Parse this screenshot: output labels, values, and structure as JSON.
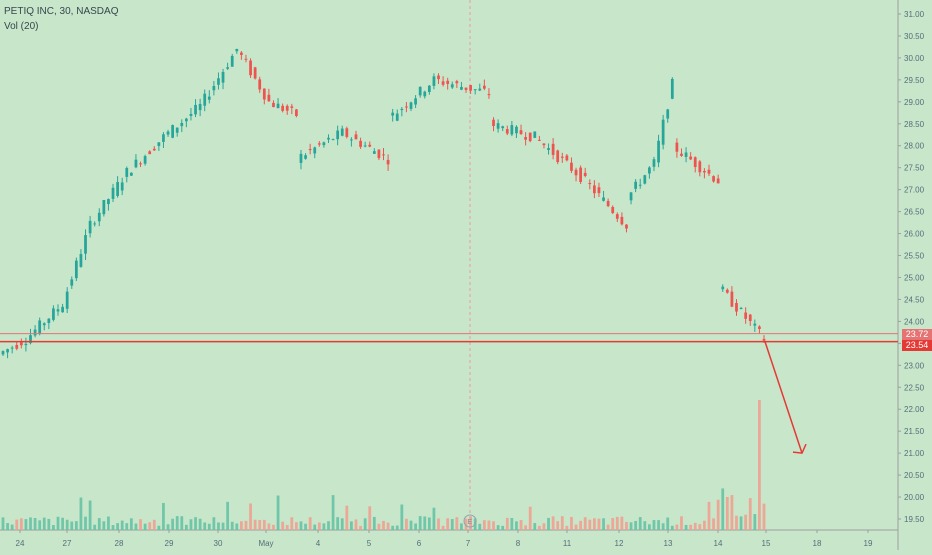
{
  "header": {
    "symbol_line": "PETIQ INC, 30, NASDAQ",
    "volume_label": "Vol (20)"
  },
  "colors": {
    "background": "#c8e6c9",
    "up": "#26a69a",
    "down": "#ef5350",
    "up_volume": "#66c2a5",
    "down_volume": "#f0a090",
    "line": "#e53935"
  },
  "chart_data": {
    "type": "candlestick",
    "interval": "30",
    "ylim": [
      19.2,
      31.2
    ],
    "y_ticks": [
      "31.00",
      "30.50",
      "30.00",
      "29.50",
      "29.00",
      "28.50",
      "28.00",
      "27.50",
      "27.00",
      "26.50",
      "26.00",
      "25.50",
      "25.00",
      "24.50",
      "24.00",
      "23.50",
      "23.00",
      "22.50",
      "22.00",
      "21.50",
      "21.00",
      "20.50",
      "20.00",
      "19.50"
    ],
    "x_ticks": [
      "24",
      "27",
      "28",
      "29",
      "30",
      "May",
      "4",
      "5",
      "6",
      "7",
      "8",
      "11",
      "12",
      "13",
      "14",
      "15",
      "18",
      "19"
    ],
    "horizontal_levels": [
      {
        "value": 23.72,
        "label": "23.72"
      },
      {
        "value": 23.54,
        "label": "23.54"
      }
    ],
    "annotation": {
      "type": "arrow",
      "from": {
        "date": "15",
        "price": 23.54
      },
      "to": {
        "date": "18",
        "price": 21.0
      }
    },
    "markers": [
      {
        "label": "E",
        "date": "7"
      }
    ],
    "series_segments": [
      {
        "start": 23.25,
        "end": 23.6,
        "bars": 6
      },
      {
        "start": 23.6,
        "end": 24.4,
        "bars": 8
      },
      {
        "start": 24.4,
        "end": 26.2,
        "bars": 6
      },
      {
        "start": 26.2,
        "end": 27.4,
        "bars": 8
      },
      {
        "start": 27.4,
        "end": 28.2,
        "bars": 8
      },
      {
        "start": 28.2,
        "end": 28.9,
        "bars": 8
      },
      {
        "start": 28.9,
        "end": 30.2,
        "bars": 8
      },
      {
        "start": 30.2,
        "end": 29.0,
        "bars": 7
      },
      {
        "start": 29.0,
        "end": 28.7,
        "bars": 6
      },
      {
        "start": 27.7,
        "end": 28.3,
        "bars": 10
      },
      {
        "start": 28.3,
        "end": 27.7,
        "bars": 10
      },
      {
        "start": 28.6,
        "end": 29.5,
        "bars": 10
      },
      {
        "start": 29.5,
        "end": 29.2,
        "bars": 12
      },
      {
        "start": 28.5,
        "end": 28.2,
        "bars": 10
      },
      {
        "start": 28.2,
        "end": 27.3,
        "bars": 10
      },
      {
        "start": 27.3,
        "end": 26.2,
        "bars": 10
      },
      {
        "start": 26.8,
        "end": 27.6,
        "bars": 6
      },
      {
        "start": 27.6,
        "end": 29.4,
        "bars": 4
      },
      {
        "start": 28.0,
        "end": 27.2,
        "bars": 10
      },
      {
        "start": 24.8,
        "end": 23.6,
        "bars": 10
      }
    ],
    "volume_spike": {
      "date": "15",
      "relative": 1.0
    }
  }
}
